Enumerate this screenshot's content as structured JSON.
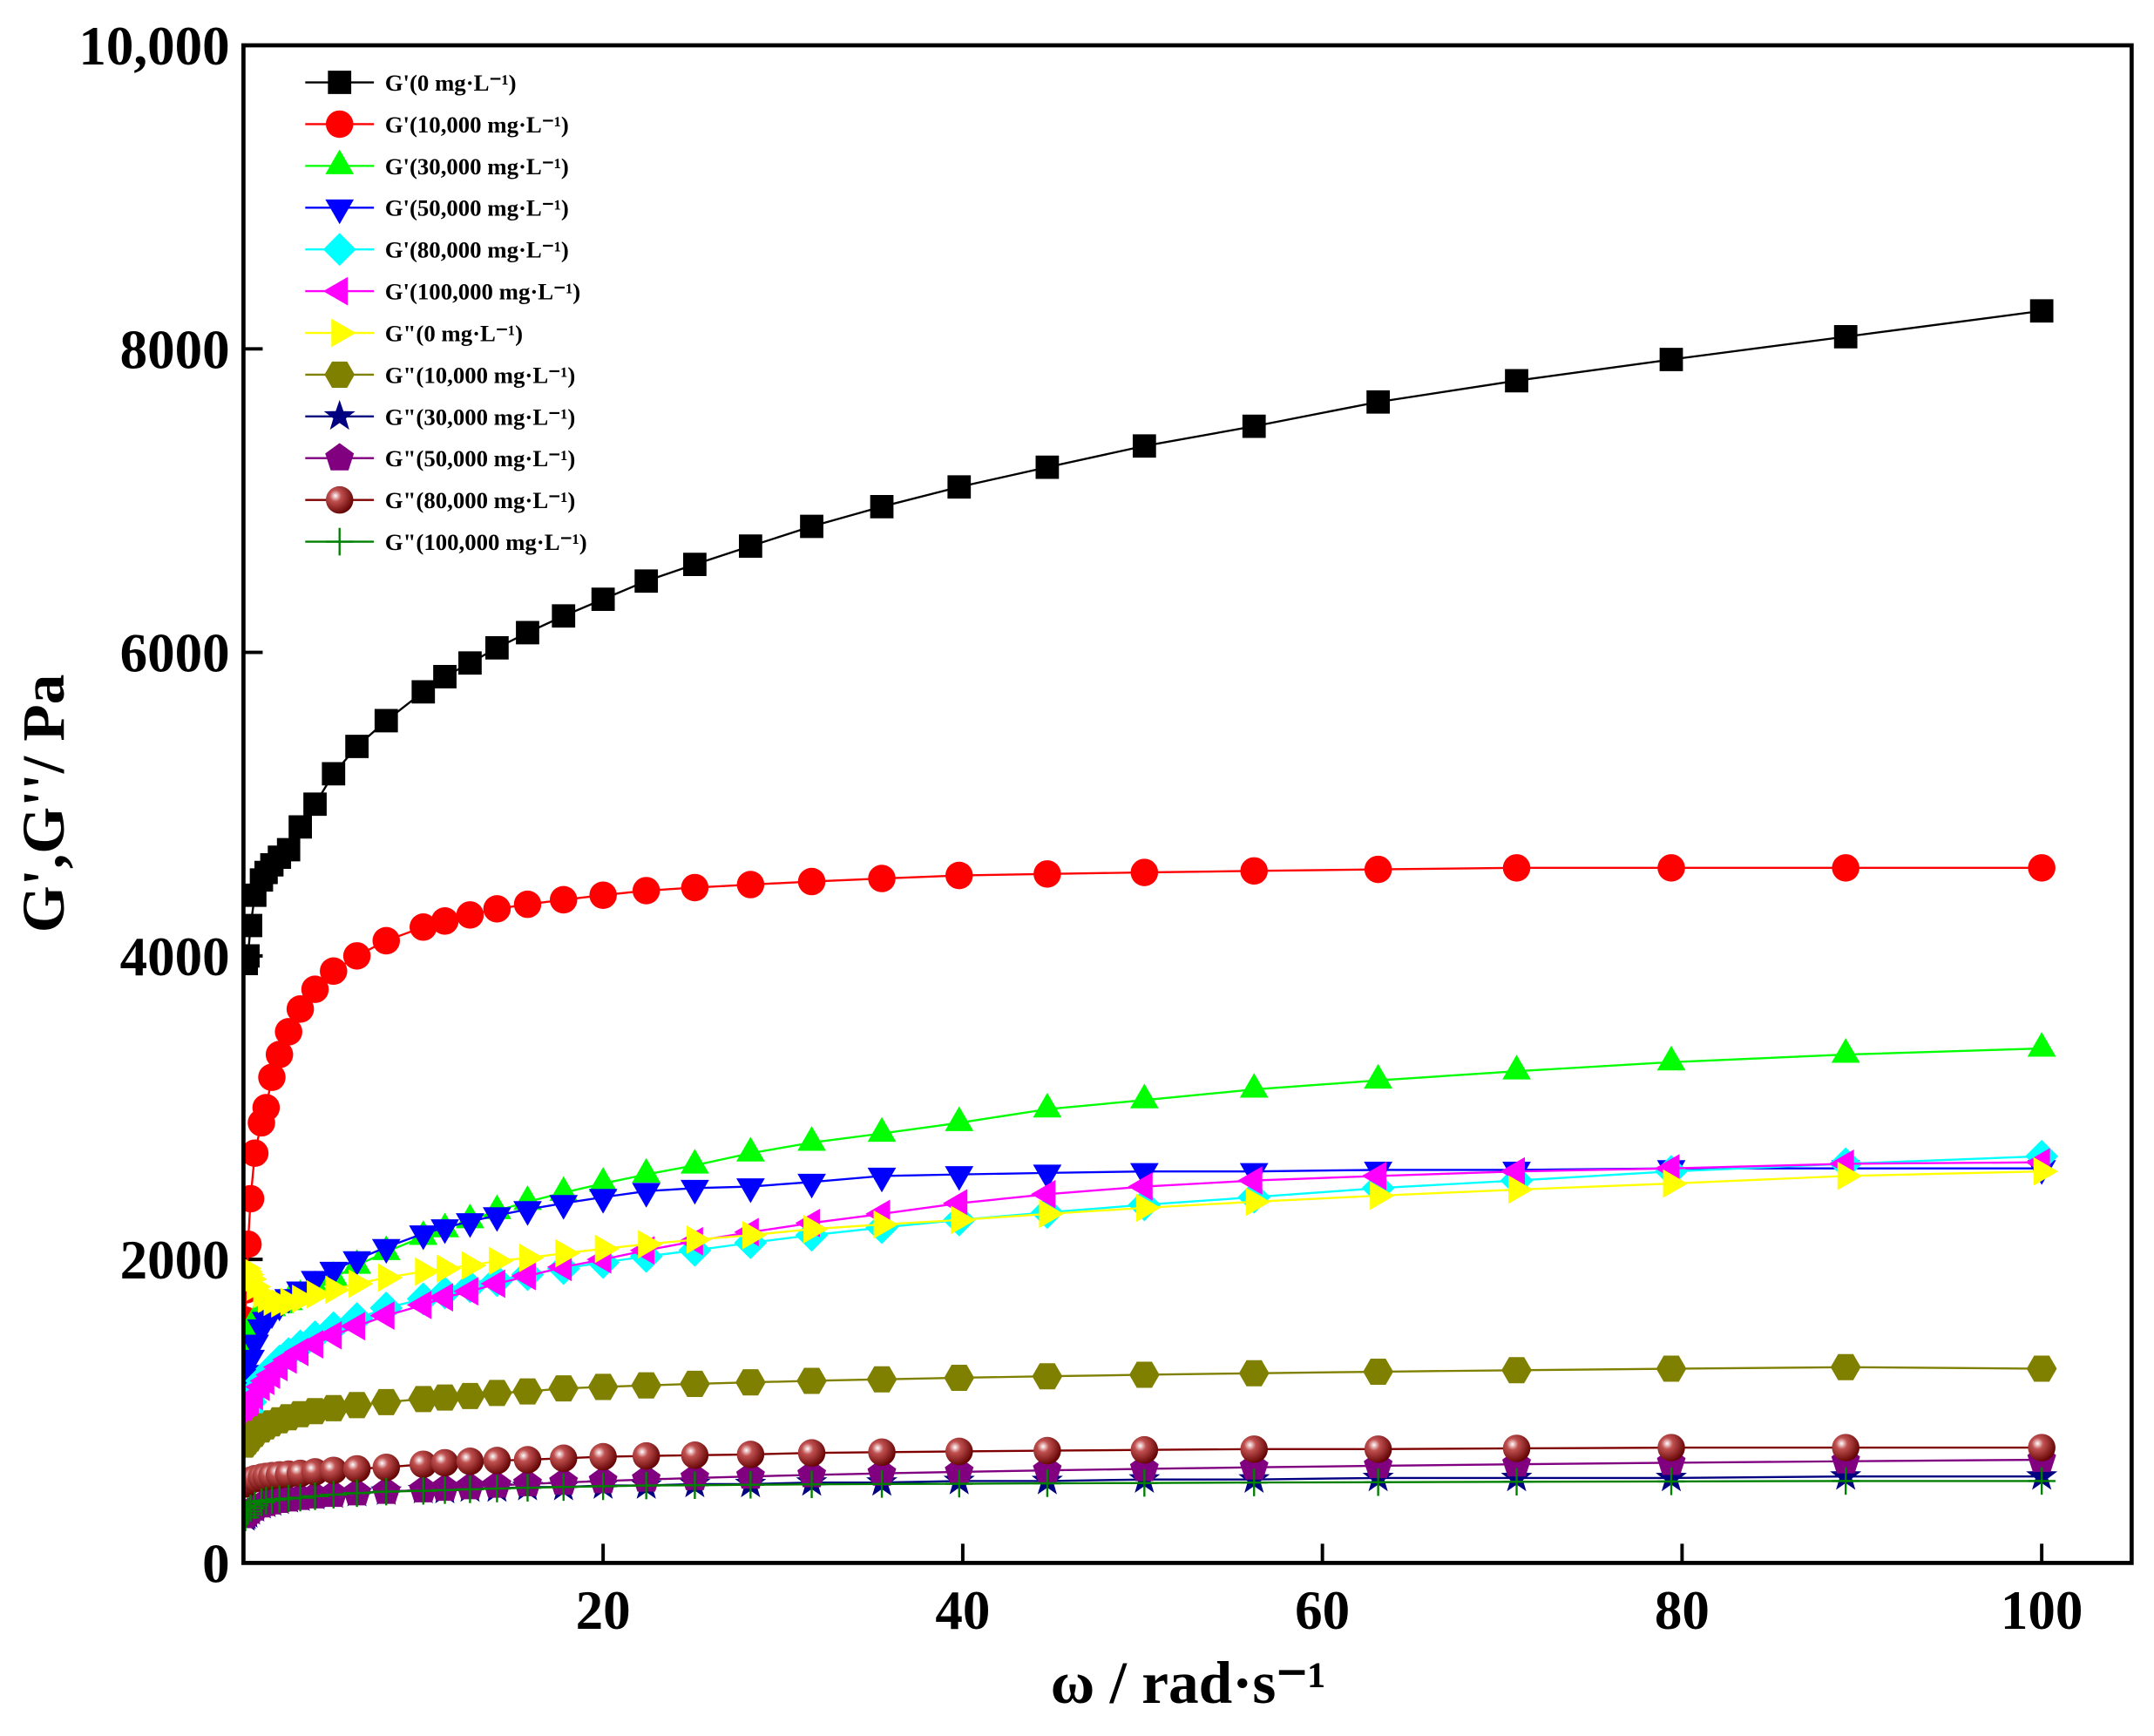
{
  "chart_data": {
    "type": "line",
    "xlabel": "ω / rad·s⁻¹",
    "ylabel": "G',G''/ Pa",
    "x": [
      0.1,
      0.158,
      0.251,
      0.398,
      0.631,
      1,
      1.26,
      1.58,
      2,
      2.51,
      3.16,
      3.98,
      5.01,
      6.31,
      7.94,
      10,
      11.2,
      12.6,
      14.1,
      15.8,
      17.8,
      20,
      22.4,
      25.1,
      28.2,
      31.6,
      35.5,
      39.8,
      44.7,
      50.1,
      56.2,
      63.1,
      70.8,
      79.4,
      89.1,
      100
    ],
    "xlim": [
      0,
      105
    ],
    "xticks": [
      20,
      40,
      60,
      80,
      100
    ],
    "ylim": [
      0,
      10000
    ],
    "yticks": [
      0,
      2000,
      4000,
      6000,
      8000,
      {
        "value": 10000,
        "label": "10,000"
      }
    ],
    "legend": "upper left",
    "series": [
      {
        "name": "G'(0 mg·L⁻¹)",
        "color": "#000000",
        "marker": "square",
        "values": [
          3950,
          3950,
          4000,
          4200,
          4400,
          4500,
          4550,
          4600,
          4650,
          4700,
          4850,
          5000,
          5200,
          5380,
          5550,
          5740,
          5840,
          5930,
          6030,
          6130,
          6240,
          6350,
          6470,
          6580,
          6700,
          6830,
          6960,
          7090,
          7220,
          7360,
          7490,
          7650,
          7790,
          7930,
          8080,
          8250
        ]
      },
      {
        "name": "G'(10,000 mg·L⁻¹)",
        "color": "#ff0000",
        "marker": "circle",
        "values": [
          1600,
          1800,
          2100,
          2400,
          2700,
          2900,
          3000,
          3200,
          3350,
          3500,
          3650,
          3780,
          3900,
          4000,
          4100,
          4190,
          4230,
          4270,
          4310,
          4340,
          4370,
          4400,
          4430,
          4450,
          4470,
          4490,
          4510,
          4530,
          4540,
          4550,
          4560,
          4570,
          4580,
          4580,
          4580,
          4580
        ]
      },
      {
        "name": "G'(30,000 mg·L⁻¹)",
        "color": "#00ff00",
        "marker": "triangle-up",
        "values": [
          1400,
          1450,
          1500,
          1550,
          1600,
          1650,
          1660,
          1680,
          1700,
          1720,
          1760,
          1820,
          1880,
          1960,
          2050,
          2150,
          2200,
          2260,
          2320,
          2380,
          2440,
          2500,
          2560,
          2620,
          2700,
          2770,
          2830,
          2900,
          2990,
          3050,
          3120,
          3180,
          3240,
          3300,
          3350,
          3390
        ]
      },
      {
        "name": "G'(50,000 mg·L⁻¹)",
        "color": "#0000ff",
        "marker": "triangle-down",
        "values": [
          1150,
          1200,
          1250,
          1350,
          1450,
          1550,
          1600,
          1650,
          1700,
          1750,
          1800,
          1870,
          1930,
          2000,
          2080,
          2170,
          2210,
          2250,
          2290,
          2330,
          2370,
          2410,
          2450,
          2470,
          2480,
          2510,
          2550,
          2560,
          2570,
          2580,
          2580,
          2590,
          2590,
          2600,
          2600,
          2600
        ]
      },
      {
        "name": "G'(80,000 mg·L⁻¹)",
        "color": "#00ffff",
        "marker": "diamond",
        "values": [
          900,
          950,
          1000,
          1060,
          1130,
          1200,
          1230,
          1280,
          1330,
          1380,
          1430,
          1490,
          1550,
          1610,
          1680,
          1740,
          1780,
          1820,
          1860,
          1900,
          1940,
          1980,
          2020,
          2060,
          2110,
          2160,
          2210,
          2260,
          2310,
          2360,
          2410,
          2470,
          2520,
          2580,
          2630,
          2680
        ]
      },
      {
        "name": "G'(100,000 mg·L⁻¹)",
        "color": "#ff00ff",
        "marker": "triangle-left",
        "values": [
          930,
          960,
          990,
          1040,
          1100,
          1160,
          1200,
          1240,
          1290,
          1340,
          1390,
          1440,
          1500,
          1560,
          1630,
          1700,
          1750,
          1790,
          1840,
          1890,
          1950,
          2000,
          2060,
          2120,
          2180,
          2240,
          2300,
          2370,
          2430,
          2480,
          2520,
          2550,
          2580,
          2600,
          2630,
          2640
        ]
      },
      {
        "name": "G\"(0 mg·L⁻¹)",
        "color": "#ffff00",
        "marker": "triangle-right",
        "values": [
          1940,
          1920,
          1900,
          1870,
          1820,
          1770,
          1740,
          1720,
          1710,
          1720,
          1740,
          1770,
          1800,
          1840,
          1880,
          1920,
          1940,
          1960,
          1990,
          2010,
          2040,
          2070,
          2100,
          2130,
          2160,
          2200,
          2230,
          2260,
          2300,
          2340,
          2380,
          2420,
          2460,
          2500,
          2550,
          2580
        ]
      },
      {
        "name": "G\"(10,000 mg·L⁻¹)",
        "color": "#808000",
        "marker": "hexagon",
        "values": [
          780,
          790,
          800,
          820,
          850,
          880,
          900,
          920,
          940,
          960,
          980,
          1000,
          1020,
          1040,
          1060,
          1080,
          1090,
          1100,
          1120,
          1130,
          1150,
          1160,
          1170,
          1180,
          1190,
          1200,
          1210,
          1220,
          1230,
          1240,
          1250,
          1260,
          1270,
          1280,
          1290,
          1280
        ]
      },
      {
        "name": "G\"(30,000 mg·L⁻¹)",
        "color": "#000080",
        "marker": "star",
        "values": [
          300,
          310,
          320,
          340,
          360,
          380,
          390,
          400,
          410,
          420,
          430,
          440,
          450,
          460,
          470,
          480,
          480,
          490,
          490,
          500,
          500,
          510,
          510,
          520,
          520,
          530,
          530,
          540,
          540,
          550,
          550,
          560,
          560,
          560,
          570,
          570
        ]
      },
      {
        "name": "G\"(50,000 mg·L⁻¹)",
        "color": "#800080",
        "marker": "pentagon",
        "values": [
          310,
          320,
          330,
          340,
          360,
          380,
          390,
          400,
          410,
          420,
          430,
          440,
          450,
          460,
          470,
          480,
          490,
          500,
          510,
          520,
          530,
          540,
          550,
          560,
          570,
          580,
          590,
          600,
          610,
          620,
          630,
          640,
          650,
          660,
          670,
          680
        ]
      },
      {
        "name": "G\"(80,000 mg·L⁻¹)",
        "color": "#800000",
        "marker": "sphere",
        "values": [
          520,
          530,
          535,
          545,
          555,
          565,
          570,
          575,
          580,
          585,
          590,
          600,
          610,
          620,
          630,
          650,
          660,
          670,
          675,
          680,
          690,
          700,
          705,
          710,
          715,
          725,
          730,
          735,
          740,
          745,
          750,
          750,
          755,
          760,
          760,
          760
        ]
      },
      {
        "name": "G\"(100,000 mg·L⁻¹)",
        "color": "#008000",
        "marker": "plus",
        "values": [
          300,
          320,
          340,
          360,
          380,
          400,
          410,
          415,
          420,
          425,
          430,
          440,
          450,
          460,
          470,
          475,
          480,
          485,
          490,
          495,
          500,
          505,
          510,
          512,
          515,
          518,
          520,
          522,
          525,
          527,
          530,
          532,
          535,
          537,
          540,
          540
        ]
      }
    ]
  }
}
